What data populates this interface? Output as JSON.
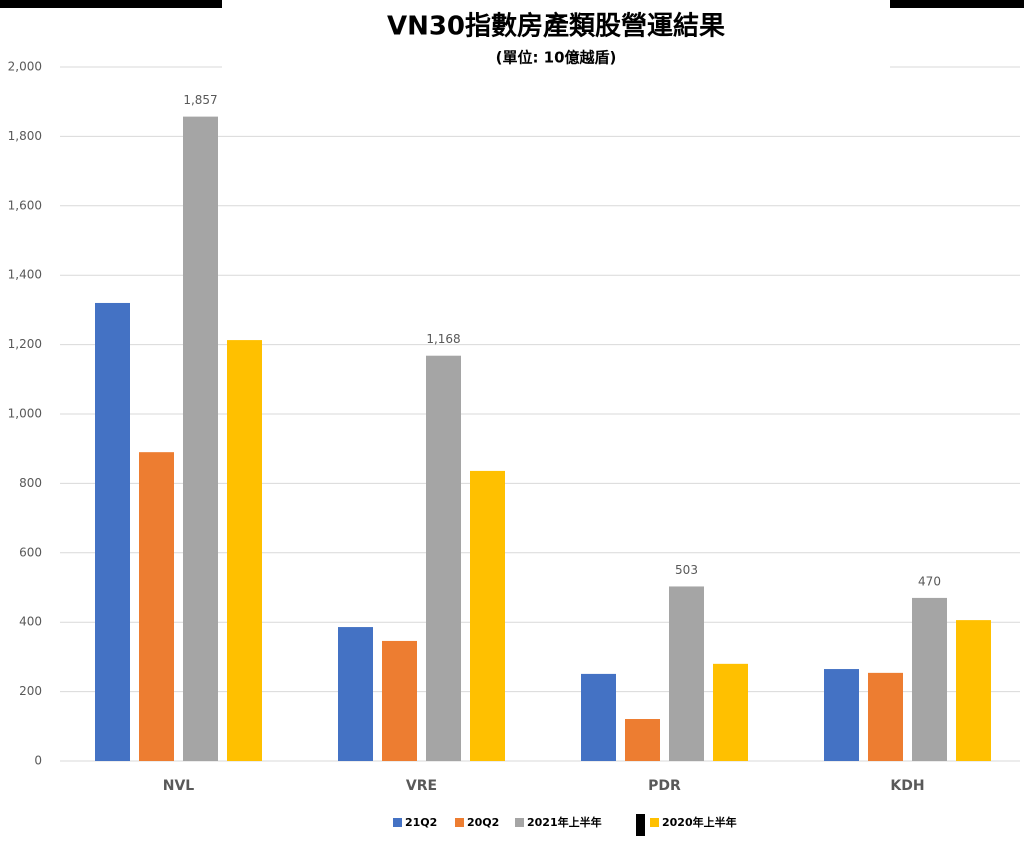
{
  "chart_data": {
    "type": "bar",
    "title": "VN30指數房產類股營運結果",
    "subtitle": "(單位: 10億越盾)",
    "categories": [
      "NVL",
      "VRE",
      "PDR",
      "KDH"
    ],
    "series": [
      {
        "name": "21Q2",
        "color": "#4472c4",
        "values": [
          1320,
          386,
          251,
          265
        ]
      },
      {
        "name": "20Q2",
        "color": "#ed7d31",
        "values": [
          890,
          346,
          121,
          254
        ]
      },
      {
        "name": "2021年上半年",
        "color": "#a5a5a5",
        "values": [
          1857,
          1168,
          503,
          470
        ],
        "value_labels": [
          "1,857",
          "1,168",
          "503",
          "470"
        ]
      },
      {
        "name": "2020年上半年",
        "color": "#ffc000",
        "values": [
          1213,
          836,
          280,
          406
        ]
      }
    ],
    "ylim": [
      0,
      2000
    ],
    "yticks": [
      0,
      200,
      400,
      600,
      800,
      {
        "value": 1000,
        "label": "1,000"
      },
      {
        "value": 1200,
        "label": "1,200"
      },
      {
        "value": 1400,
        "label": "1,400"
      },
      {
        "value": 1600,
        "label": "1,600"
      },
      {
        "value": 1800,
        "label": "1,800"
      },
      {
        "value": 2000,
        "label": "2,000"
      }
    ],
    "grid": true,
    "legend": "bottom"
  }
}
